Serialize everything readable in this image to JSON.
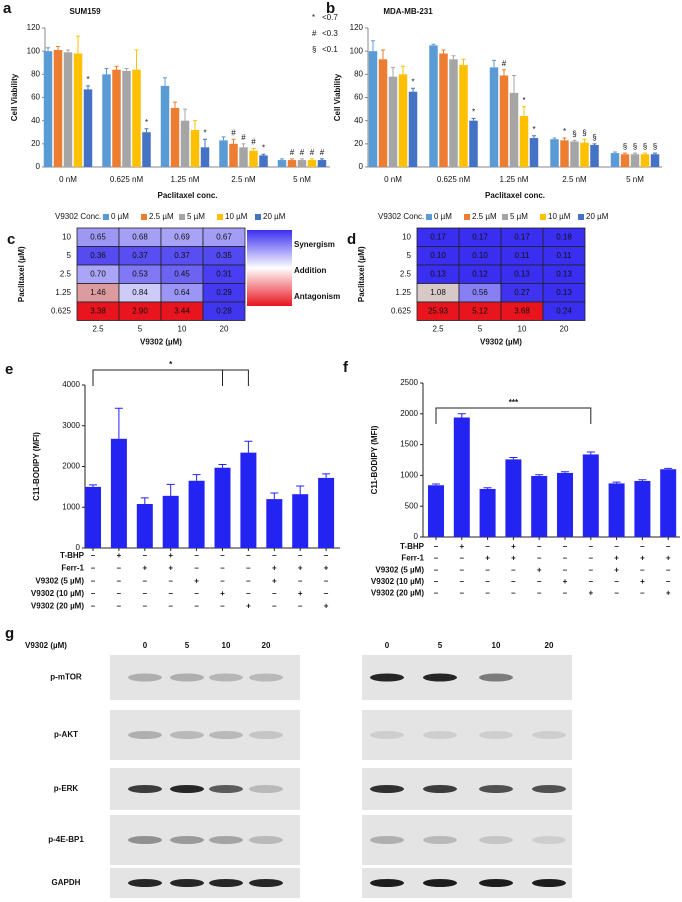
{
  "chart_data": [
    {
      "type": "grouped_bar",
      "panel": "a",
      "title": "SUM159",
      "x_label": "Paclitaxel conc.",
      "y_label": "Cell Viability",
      "legend_title": "V9302 Conc.",
      "categories": [
        "0 nM",
        "0.625 nM",
        "1.25 nM",
        "2.5 nM",
        "5 nM"
      ],
      "series": [
        {
          "name": "0 µM",
          "color": "#5b9bd5",
          "values": [
            100,
            80,
            70,
            23,
            6
          ],
          "errors": [
            3,
            5,
            7,
            3,
            1
          ],
          "markers": [
            null,
            null,
            null,
            null,
            null
          ]
        },
        {
          "name": "2.5 µM",
          "color": "#ed7d31",
          "values": [
            101,
            84,
            51,
            20,
            6
          ],
          "errors": [
            3,
            3,
            5,
            4,
            1
          ],
          "markers": [
            null,
            null,
            null,
            "#",
            "#"
          ]
        },
        {
          "name": "5 µM",
          "color": "#a5a5a5",
          "values": [
            99,
            83,
            40,
            17,
            6
          ],
          "errors": [
            2,
            2,
            10,
            3,
            1
          ],
          "markers": [
            null,
            null,
            null,
            "#",
            "#"
          ]
        },
        {
          "name": "10 µM",
          "color": "#ffc000",
          "values": [
            98,
            84,
            32,
            14,
            6
          ],
          "errors": [
            15,
            17,
            8,
            2,
            1
          ],
          "markers": [
            null,
            null,
            null,
            "#",
            "#"
          ]
        },
        {
          "name": "20 µM",
          "color": "#4472c4",
          "values": [
            67,
            30,
            17,
            10,
            6
          ],
          "errors": [
            3,
            3,
            7,
            1,
            1
          ],
          "markers": [
            "*",
            "*",
            "*",
            "*",
            "#"
          ]
        }
      ],
      "ylim": [
        0,
        120
      ],
      "yticks": [
        0,
        20,
        40,
        60,
        80,
        100,
        120
      ],
      "symbol_legend": [
        {
          "symbol": "*",
          "label": "<0.7"
        },
        {
          "symbol": "#",
          "label": "<0.3"
        },
        {
          "symbol": "§",
          "label": "<0.1"
        }
      ]
    },
    {
      "type": "grouped_bar",
      "panel": "b",
      "title": "MDA-MB-231",
      "x_label": "Paclitaxel conc.",
      "y_label": "Cell Viability",
      "legend_title": "V9302 Conc.",
      "categories": [
        "0 nM",
        "0.625 nM",
        "1.25 nM",
        "2.5 nM",
        "5 nM"
      ],
      "series": [
        {
          "name": "0 µM",
          "color": "#5b9bd5",
          "values": [
            100,
            105,
            86,
            24,
            12
          ],
          "errors": [
            9,
            1,
            6,
            1,
            1
          ],
          "markers": [
            null,
            null,
            null,
            null,
            null
          ]
        },
        {
          "name": "2.5 µM",
          "color": "#ed7d31",
          "values": [
            93,
            98,
            79,
            23,
            11
          ],
          "errors": [
            8,
            3,
            5,
            2,
            1
          ],
          "markers": [
            null,
            null,
            "#",
            "*",
            "§"
          ]
        },
        {
          "name": "5 µM",
          "color": "#a5a5a5",
          "values": [
            78,
            93,
            64,
            22,
            11
          ],
          "errors": [
            8,
            3,
            15,
            1,
            1
          ],
          "markers": [
            null,
            null,
            null,
            "§",
            "§"
          ]
        },
        {
          "name": "10 µM",
          "color": "#ffc000",
          "values": [
            80,
            88,
            44,
            21,
            11
          ],
          "errors": [
            7,
            5,
            8,
            3,
            1
          ],
          "markers": [
            null,
            null,
            "*",
            "§",
            "§"
          ]
        },
        {
          "name": "20 µM",
          "color": "#4472c4",
          "values": [
            65,
            40,
            25,
            19,
            11
          ],
          "errors": [
            3,
            2,
            2,
            1,
            1
          ],
          "markers": [
            "*",
            "*",
            "*",
            "§",
            "§"
          ]
        }
      ],
      "ylim": [
        0,
        120
      ],
      "yticks": [
        0,
        20,
        40,
        60,
        80,
        100,
        120
      ]
    },
    {
      "type": "heatmap",
      "panel": "c",
      "x_label": "V9302 (µM)",
      "y_label": "Paclitaxel (µM)",
      "x_categories": [
        2.5,
        5,
        10,
        20
      ],
      "y_categories": [
        10,
        5,
        2.5,
        1.25,
        0.625
      ],
      "values": [
        [
          0.65,
          0.68,
          0.69,
          0.67
        ],
        [
          0.36,
          0.37,
          0.37,
          0.35
        ],
        [
          0.7,
          0.53,
          0.45,
          0.31
        ],
        [
          1.46,
          0.84,
          0.64,
          0.29
        ],
        [
          3.38,
          2.9,
          3.44,
          0.28
        ]
      ],
      "value_labels": [
        [
          "0.65",
          "0.68",
          "0.69",
          "0.67"
        ],
        [
          "0.36",
          "0.37",
          "0.37",
          "0.35"
        ],
        [
          "0.70",
          "0.53",
          "0.45",
          "0.31"
        ],
        [
          "1.46",
          "0.84",
          "0.64",
          "0.29"
        ],
        [
          "3.38",
          "2.90",
          "3.44",
          "0.28"
        ]
      ],
      "scale_labels": [
        "Synergism",
        "Addition",
        "Antagonism"
      ]
    },
    {
      "type": "heatmap",
      "panel": "d",
      "x_label": "V9302 (µM)",
      "y_label": "Paclitaxel (µM)",
      "x_categories": [
        2.5,
        5,
        10,
        20
      ],
      "y_categories": [
        10,
        5,
        2.5,
        1.25,
        0.625
      ],
      "values": [
        [
          0.17,
          0.17,
          0.17,
          0.18
        ],
        [
          0.1,
          0.1,
          0.11,
          0.11
        ],
        [
          0.13,
          0.12,
          0.13,
          0.13
        ],
        [
          1.08,
          0.56,
          0.27,
          0.13
        ],
        [
          25.93,
          5.12,
          3.68,
          0.24
        ]
      ],
      "value_labels": [
        [
          "0.17",
          "0.17",
          "0.17",
          "0.18"
        ],
        [
          "0.10",
          "0.10",
          "0.11",
          "0.11"
        ],
        [
          "0.13",
          "0.12",
          "0.13",
          "0.13"
        ],
        [
          "1.08",
          "0.56",
          "0.27",
          "0.13"
        ],
        [
          "25.93",
          "5.12",
          "3.68",
          "0.24"
        ]
      ]
    },
    {
      "type": "condition_bar",
      "panel": "e",
      "y_label": "C11-BODIPY (MFI)",
      "color": "#2424f2",
      "values": [
        1500,
        2680,
        1080,
        1280,
        1650,
        1970,
        2340,
        1200,
        1320,
        1720
      ],
      "errors": [
        50,
        750,
        150,
        280,
        150,
        80,
        280,
        150,
        200,
        100
      ],
      "ylim": [
        0,
        4000
      ],
      "yticks": [
        0,
        1000,
        2000,
        3000,
        4000
      ],
      "significance": "*",
      "conditions": [
        {
          "label": "T-BHP",
          "signs": [
            "–",
            "+",
            "–",
            "+",
            "–",
            "–",
            "–",
            "–",
            "–",
            "–"
          ]
        },
        {
          "label": "Ferr-1",
          "signs": [
            "–",
            "–",
            "+",
            "+",
            "–",
            "–",
            "–",
            "+",
            "+",
            "+"
          ]
        },
        {
          "label": "V9302 (5 µM)",
          "signs": [
            "–",
            "–",
            "–",
            "–",
            "+",
            "–",
            "–",
            "+",
            "–",
            "–"
          ]
        },
        {
          "label": "V9302 (10 µM)",
          "signs": [
            "–",
            "–",
            "–",
            "–",
            "–",
            "+",
            "–",
            "–",
            "+",
            "–"
          ]
        },
        {
          "label": "V9302 (20 µM)",
          "signs": [
            "–",
            "–",
            "–",
            "–",
            "–",
            "–",
            "+",
            "–",
            "–",
            "+"
          ]
        }
      ]
    },
    {
      "type": "condition_bar",
      "panel": "f",
      "y_label": "C11-BODIPY (MFI)",
      "color": "#2424f2",
      "values": [
        840,
        1940,
        780,
        1260,
        990,
        1040,
        1340,
        870,
        910,
        1100
      ],
      "errors": [
        20,
        60,
        20,
        30,
        20,
        20,
        40,
        20,
        20,
        15
      ],
      "ylim": [
        0,
        2500
      ],
      "yticks": [
        0,
        500,
        1000,
        1500,
        2000,
        2500
      ],
      "significance": "***",
      "conditions": [
        {
          "label": "T-BHP",
          "signs": [
            "–",
            "+",
            "–",
            "+",
            "–",
            "–",
            "–",
            "–",
            "–",
            "–"
          ]
        },
        {
          "label": "Ferr-1",
          "signs": [
            "–",
            "–",
            "+",
            "+",
            "–",
            "–",
            "–",
            "+",
            "+",
            "+"
          ]
        },
        {
          "label": "V9302 (5 µM)",
          "signs": [
            "–",
            "–",
            "–",
            "–",
            "+",
            "–",
            "–",
            "+",
            "–",
            "–"
          ]
        },
        {
          "label": "V9302 (10 µM)",
          "signs": [
            "–",
            "–",
            "–",
            "–",
            "–",
            "+",
            "–",
            "–",
            "+",
            "–"
          ]
        },
        {
          "label": "V9302 (20 µM)",
          "signs": [
            "–",
            "–",
            "–",
            "–",
            "–",
            "–",
            "+",
            "–",
            "–",
            "+"
          ]
        }
      ]
    }
  ],
  "blots": {
    "panel": "g",
    "title": "V9302 (µM)",
    "lanes": [
      0,
      5,
      10,
      20
    ],
    "rows": [
      "p-mTOR",
      "p-AKT",
      "p-ERK",
      "p-4E-BP1",
      "GAPDH"
    ]
  }
}
